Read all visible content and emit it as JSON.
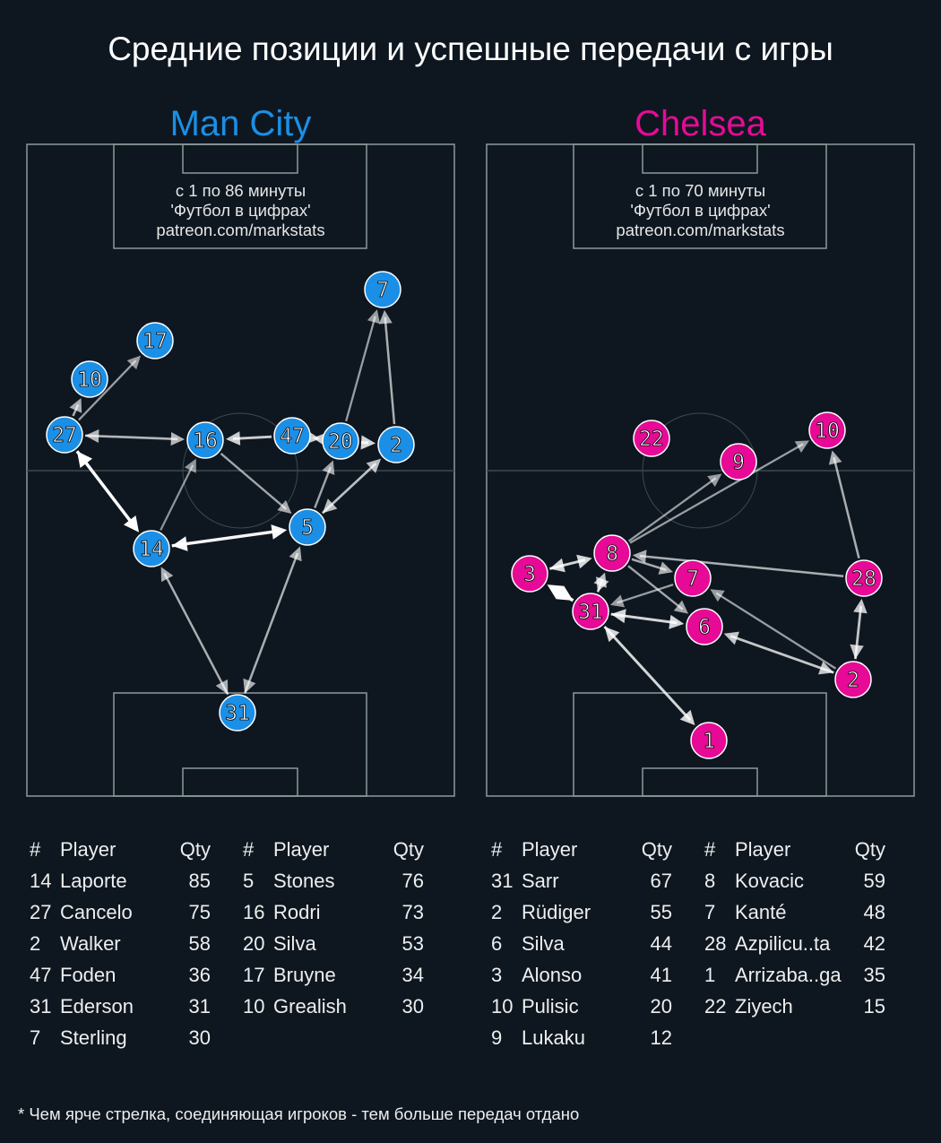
{
  "title": "Средние позиции и успешные передачи с игры",
  "footnote": "* Чем ярче стрелка, соединяющая игроков - тем больше передач отдано",
  "colors": {
    "background": "#0e1720",
    "man_city": "#1b8fe6",
    "chelsea": "#e60a96",
    "pitch_lines": "#8a9a9a"
  },
  "teams": [
    {
      "name": "Man City",
      "info": [
        "с 1 по 86 минуты",
        "'Футбол в цифрах'",
        "patreon.com/markstats"
      ],
      "players": [
        "7",
        "17",
        "10",
        "27",
        "16",
        "47",
        "20",
        "2",
        "5",
        "14",
        "31"
      ],
      "passes": [
        {
          "from": "27",
          "to": "10",
          "level": 0.5
        },
        {
          "from": "27",
          "to": "17",
          "level": 0.4
        },
        {
          "from": "27",
          "to": "16",
          "level": 0.55,
          "both": true
        },
        {
          "from": "47",
          "to": "16",
          "level": 0.7
        },
        {
          "from": "47",
          "to": "20",
          "level": 0.7,
          "both": true
        },
        {
          "from": "20",
          "to": "2",
          "level": 0.75
        },
        {
          "from": "20",
          "to": "7",
          "level": 0.4
        },
        {
          "from": "2",
          "to": "7",
          "level": 0.5
        },
        {
          "from": "16",
          "to": "5",
          "level": 0.45
        },
        {
          "from": "14",
          "to": "16",
          "level": 0.35
        },
        {
          "from": "5",
          "to": "20",
          "level": 0.45
        },
        {
          "from": "5",
          "to": "2",
          "level": 0.6,
          "both": true
        },
        {
          "from": "27",
          "to": "14",
          "level": 1,
          "both": true
        },
        {
          "from": "14",
          "to": "5",
          "level": 0.95,
          "both": true
        },
        {
          "from": "31",
          "to": "14",
          "level": 0.5,
          "both": true
        },
        {
          "from": "31",
          "to": "5",
          "level": 0.5,
          "both": true
        }
      ],
      "table_header": {
        "num": "#",
        "player": "Player",
        "qty": "Qty"
      },
      "table": [
        [
          [
            "14",
            "Laporte",
            "85"
          ],
          [
            "27",
            "Cancelo",
            "75"
          ],
          [
            "2",
            "Walker",
            "58"
          ],
          [
            "47",
            "Foden",
            "36"
          ],
          [
            "31",
            "Ederson",
            "31"
          ],
          [
            "7",
            "Sterling",
            "30"
          ]
        ],
        [
          [
            "5",
            "Stones",
            "76"
          ],
          [
            "16",
            "Rodri",
            "73"
          ],
          [
            "20",
            "Silva",
            "53"
          ],
          [
            "17",
            "Bruyne",
            "34"
          ],
          [
            "10",
            "Grealish",
            "30"
          ]
        ]
      ]
    },
    {
      "name": "Chelsea",
      "info": [
        "с 1 по 70 минуты",
        "'Футбол в цифрах'",
        "patreon.com/markstats"
      ],
      "players": [
        "22",
        "9",
        "10",
        "8",
        "3",
        "7",
        "28",
        "31",
        "6",
        "2",
        "1"
      ],
      "passes": [
        {
          "from": "8",
          "to": "9",
          "level": 0.4
        },
        {
          "from": "8",
          "to": "10",
          "level": 0.4
        },
        {
          "from": "3",
          "to": "8",
          "level": 0.75,
          "both": true
        },
        {
          "from": "31",
          "to": "8",
          "level": 0.6,
          "both": true
        },
        {
          "from": "31",
          "to": "3",
          "level": 1,
          "both": true
        },
        {
          "from": "8",
          "to": "7",
          "level": 0.5
        },
        {
          "from": "8",
          "to": "6",
          "level": 0.45
        },
        {
          "from": "7",
          "to": "31",
          "level": 0.4
        },
        {
          "from": "31",
          "to": "6",
          "level": 0.75,
          "both": true
        },
        {
          "from": "28",
          "to": "8",
          "level": 0.5
        },
        {
          "from": "28",
          "to": "10",
          "level": 0.5
        },
        {
          "from": "2",
          "to": "28",
          "level": 0.65,
          "both": true
        },
        {
          "from": "2",
          "to": "7",
          "level": 0.4
        },
        {
          "from": "2",
          "to": "6",
          "level": 0.65,
          "both": true
        },
        {
          "from": "31",
          "to": "1",
          "level": 0.75,
          "both": true
        }
      ],
      "table_header": {
        "num": "#",
        "player": "Player",
        "qty": "Qty"
      },
      "table": [
        [
          [
            "31",
            "Sarr",
            "67"
          ],
          [
            "2",
            "Rüdiger",
            "55"
          ],
          [
            "6",
            "Silva",
            "44"
          ],
          [
            "3",
            "Alonso",
            "41"
          ],
          [
            "10",
            "Pulisic",
            "20"
          ],
          [
            "9",
            "Lukaku",
            "12"
          ]
        ],
        [
          [
            "8",
            "Kovacic",
            "59"
          ],
          [
            "7",
            "Kanté",
            "48"
          ],
          [
            "28",
            "Azpilicu..ta",
            "42"
          ],
          [
            "1",
            "Arrizaba..ga",
            "35"
          ],
          [
            "22",
            "Ziyech",
            "15"
          ]
        ]
      ]
    }
  ]
}
